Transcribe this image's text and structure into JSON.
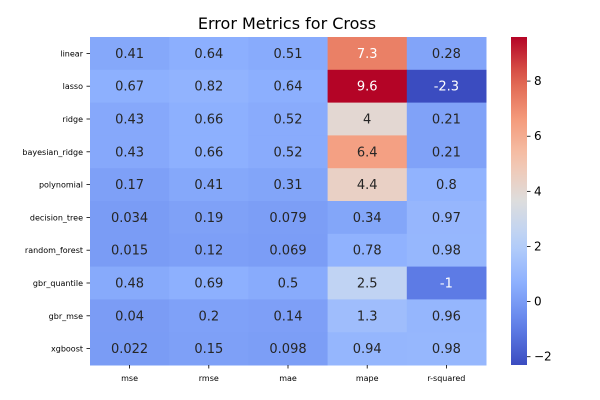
{
  "chart_data": {
    "type": "heatmap",
    "title": "Error Metrics for Cross",
    "rows": [
      "linear",
      "lasso",
      "ridge",
      "bayesian_ridge",
      "polynomial",
      "decision_tree",
      "random_forest",
      "gbr_quantile",
      "gbr_mse",
      "xgboost"
    ],
    "columns": [
      "mse",
      "rmse",
      "mae",
      "mape",
      "r-squared"
    ],
    "values": [
      [
        0.41,
        0.64,
        0.51,
        7.3,
        0.28
      ],
      [
        0.67,
        0.82,
        0.64,
        9.6,
        -2.3
      ],
      [
        0.43,
        0.66,
        0.52,
        4,
        0.21
      ],
      [
        0.43,
        0.66,
        0.52,
        6.4,
        0.21
      ],
      [
        0.17,
        0.41,
        0.31,
        4.4,
        0.8
      ],
      [
        0.034,
        0.19,
        0.079,
        0.34,
        0.97
      ],
      [
        0.015,
        0.12,
        0.069,
        0.78,
        0.98
      ],
      [
        0.48,
        0.69,
        0.5,
        2.5,
        -1
      ],
      [
        0.04,
        0.2,
        0.14,
        1.3,
        0.96
      ],
      [
        0.022,
        0.15,
        0.098,
        0.94,
        0.98
      ]
    ],
    "colormap": "coolwarm",
    "color_range": [
      -2.3,
      9.6
    ],
    "colorbar_ticks": [
      -2,
      0,
      2,
      4,
      6,
      8
    ],
    "annotations": true
  }
}
